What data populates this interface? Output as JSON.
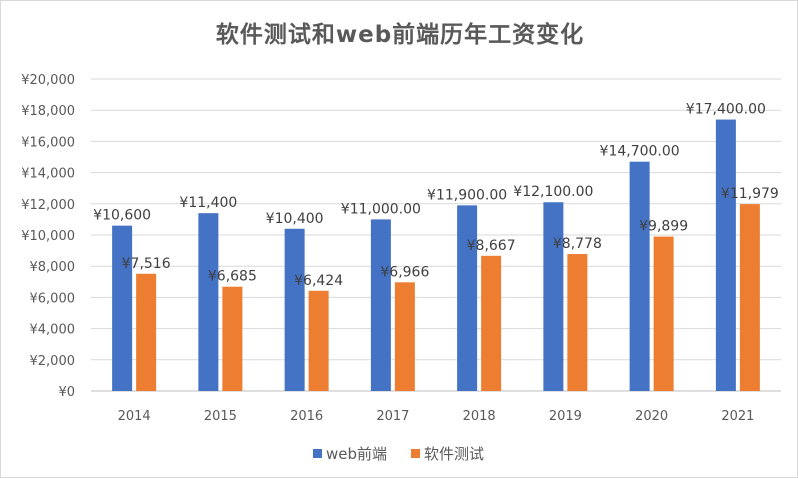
{
  "chart_data": {
    "type": "bar",
    "title": "软件测试和web前端历年工资变化",
    "categories": [
      "2014",
      "2015",
      "2016",
      "2017",
      "2018",
      "2019",
      "2020",
      "2021"
    ],
    "ylim": [
      0,
      20000
    ],
    "ytick_step": 2000,
    "ytick_labels": [
      "¥0",
      "¥2,000",
      "¥4,000",
      "¥6,000",
      "¥8,000",
      "¥10,000",
      "¥12,000",
      "¥14,000",
      "¥16,000",
      "¥18,000",
      "¥20,000"
    ],
    "grid": true,
    "legend_position": "bottom",
    "series": [
      {
        "name": "web前端",
        "color": "#4472C4",
        "values": [
          10600,
          11400,
          10400,
          11000,
          11900,
          12100,
          14700,
          17400
        ],
        "labels": [
          "¥10,600",
          "¥11,400",
          "¥10,400",
          "¥11,000.00",
          "¥11,900.00",
          "¥12,100.00",
          "¥14,700.00",
          "¥17,400.00"
        ]
      },
      {
        "name": "软件测试",
        "color": "#ED7D31",
        "values": [
          7516,
          6685,
          6424,
          6966,
          8667,
          8778,
          9899,
          11979
        ],
        "labels": [
          "¥7,516",
          "¥6,685",
          "¥6,424",
          "¥6,966",
          "¥8,667",
          "¥8,778",
          "¥9,899",
          "¥11,979"
        ]
      }
    ]
  }
}
